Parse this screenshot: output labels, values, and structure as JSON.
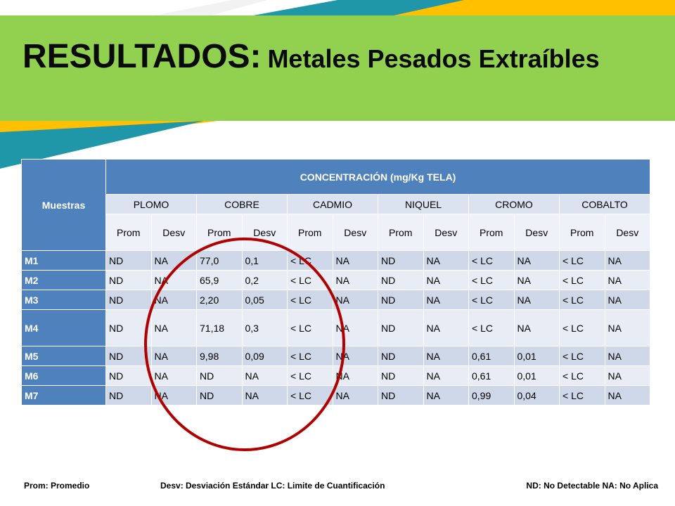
{
  "title": {
    "main": "RESULTADOS:",
    "sub": "Metales Pesados Extraíbles"
  },
  "table": {
    "muestras_header": "Muestras",
    "concentracion_header": "CONCENTRACIÓN (mg/Kg TELA)",
    "metals": [
      "PLOMO",
      "COBRE",
      "CADMIO",
      "NIQUEL",
      "CROMO",
      "COBALTO"
    ],
    "stats": [
      "Prom",
      "Desv",
      "Prom",
      "Desv",
      "Prom",
      "Desv",
      "Prom",
      "Desv",
      "Prom",
      "Desv",
      "Prom",
      "Desv"
    ],
    "rows": [
      {
        "label": "M1",
        "values": [
          "ND",
          "NA",
          "77,0",
          "0,1",
          "< LC",
          "NA",
          "ND",
          "NA",
          "< LC",
          "NA",
          "< LC",
          "NA"
        ]
      },
      {
        "label": "M2",
        "values": [
          "ND",
          "NA",
          "65,9",
          "0,2",
          "< LC",
          "NA",
          "ND",
          "NA",
          "< LC",
          "NA",
          "< LC",
          "NA"
        ]
      },
      {
        "label": "M3",
        "values": [
          "ND",
          "NA",
          "2,20",
          "0,05",
          "< LC",
          "NA",
          "ND",
          "NA",
          "< LC",
          "NA",
          "< LC",
          "NA"
        ]
      },
      {
        "label": "M4",
        "values": [
          "ND",
          "NA",
          "71,18",
          "0,3",
          "< LC",
          "NA",
          "ND",
          "NA",
          "< LC",
          "NA",
          "< LC",
          "NA"
        ]
      },
      {
        "label": "M5",
        "values": [
          "ND",
          "NA",
          "9,98",
          "0,09",
          "< LC",
          "NA",
          "ND",
          "NA",
          "0,61",
          "0,01",
          "< LC",
          "NA"
        ]
      },
      {
        "label": "M6",
        "values": [
          "ND",
          "NA",
          "ND",
          "NA",
          "< LC",
          "NA",
          "ND",
          "NA",
          "0,61",
          "0,01",
          "< LC",
          "NA"
        ]
      },
      {
        "label": "M7",
        "values": [
          "ND",
          "NA",
          "ND",
          "NA",
          "< LC",
          "NA",
          "ND",
          "NA",
          "0,99",
          "0,04",
          "< LC",
          "NA"
        ]
      }
    ]
  },
  "footer": {
    "left": "Prom: Promedio",
    "middle": "Desv: Desviación Estándar LC: Limite de Cuantificación",
    "right": "ND: No Detectable NA: No Aplica"
  },
  "colors": {
    "banner_green": "#92d050",
    "stripe_yellow": "#ffc000",
    "stripe_teal": "#1f97a8",
    "header_blue": "#4f81bd",
    "ellipse_red": "#b00000"
  }
}
